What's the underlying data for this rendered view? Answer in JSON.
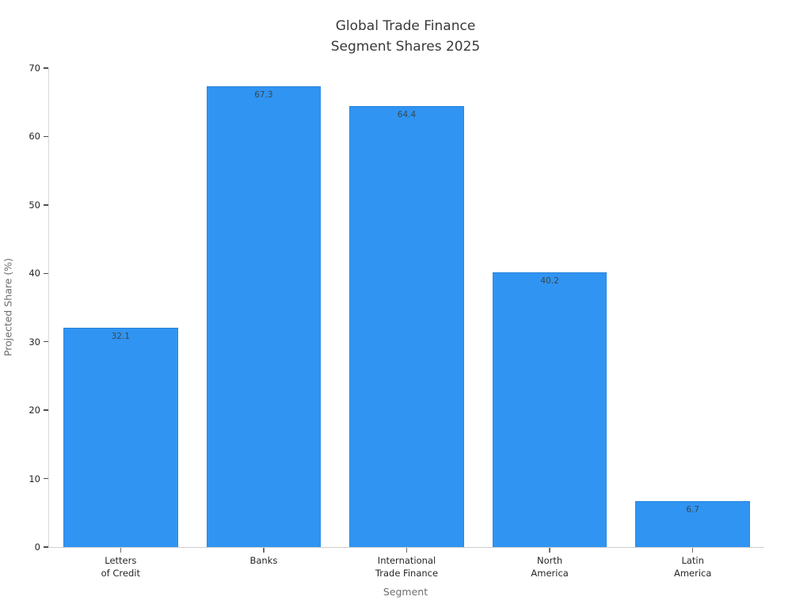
{
  "chart_data": {
    "type": "bar",
    "title": "Global Trade Finance\nSegment Shares 2025",
    "categories": [
      "Letters\nof Credit",
      "Banks",
      "International\nTrade Finance",
      "North\nAmerica",
      "Latin\nAmerica"
    ],
    "values": [
      32.1,
      67.3,
      64.4,
      40.2,
      6.7
    ],
    "value_labels": [
      "32.1",
      "67.3",
      "64.4",
      "40.2",
      "6.7"
    ],
    "xlabel": "Segment",
    "ylabel": "Projected Share (%)",
    "ylim": [
      0,
      70
    ],
    "yticks": [
      0,
      10,
      20,
      30,
      40,
      50,
      60,
      70
    ],
    "bar_width_fraction": 0.8,
    "grid": false,
    "legend": "none",
    "colors": {
      "bar": "#3094f2",
      "value_label": "#37474f",
      "title": "#3a3a3a",
      "tick_label": "#262626",
      "axis_label": "#6e6e6e",
      "spine": "#d9d9d9"
    }
  }
}
